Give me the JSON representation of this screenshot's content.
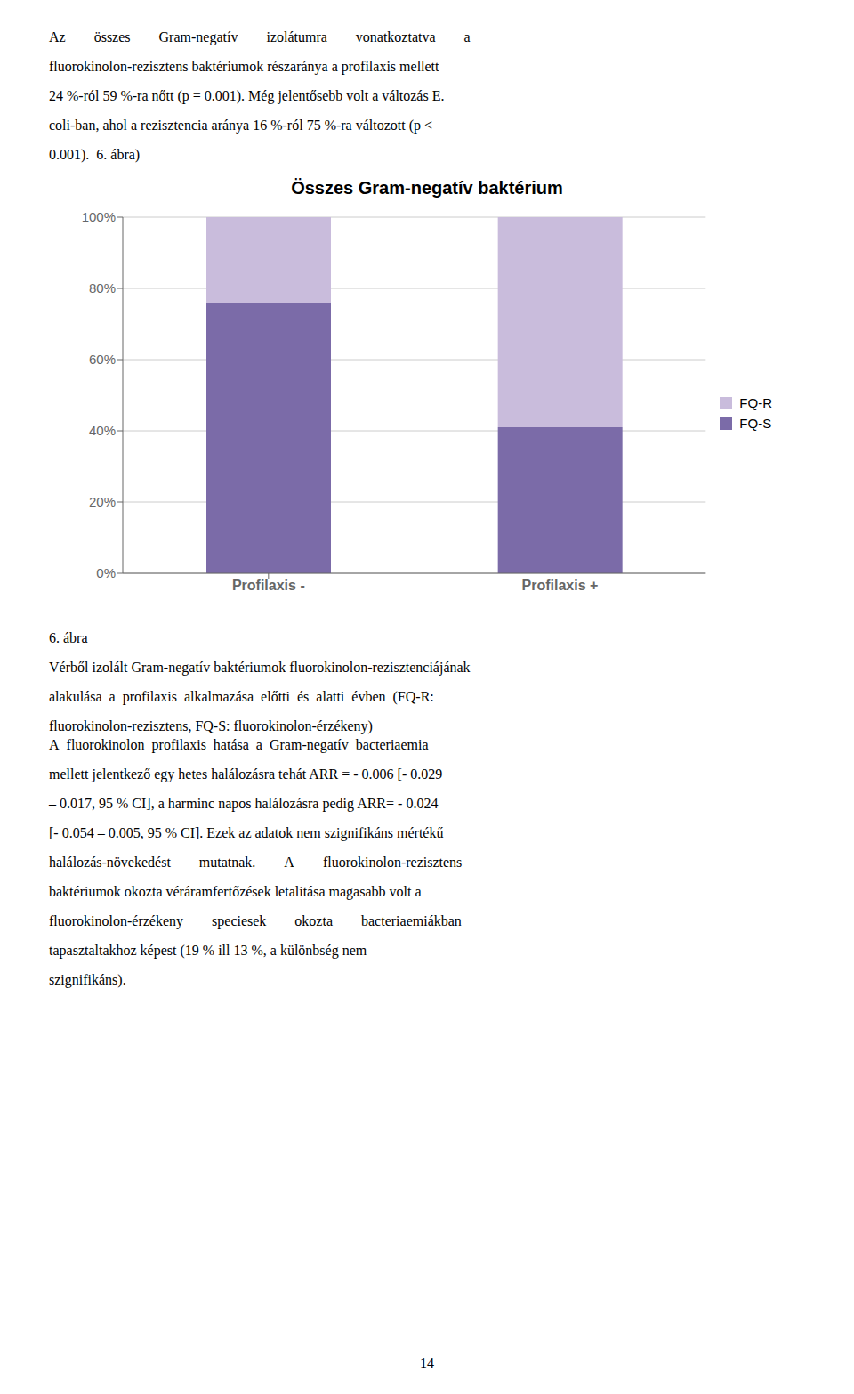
{
  "chart_data": {
    "type": "bar",
    "title": "Összes Gram-negatív baktérium",
    "categories": [
      "Profilaxis -",
      "Profilaxis +"
    ],
    "series": [
      {
        "name": "FQ-S",
        "color": "#7B6BA8",
        "values": [
          0.76,
          0.41
        ]
      },
      {
        "name": "FQ-R",
        "color": "#C9BCDC",
        "values": [
          0.24,
          0.59
        ]
      }
    ],
    "stacked": true,
    "ylim": [
      0,
      1.0
    ],
    "yticks": [
      {
        "value": 0.0,
        "label": "0%"
      },
      {
        "value": 0.2,
        "label": "20%"
      },
      {
        "value": 0.4,
        "label": "40%"
      },
      {
        "value": 0.6,
        "label": "60%"
      },
      {
        "value": 0.8,
        "label": "80%"
      },
      {
        "value": 1.0,
        "label": "100%"
      }
    ],
    "grid": true,
    "legend": "right",
    "annotations": [
      [
        "Az  összes  Gram-negatív  izolátumra  vonatkoztatva  a",
        "fluorokinolon-rezisztens baktériumok részaránya a profilaxis mellett",
        "24 %-ról 59 %-ra nőtt (p = 0.001). Még jelentősebb volt a változás E.",
        "coli-ban, ahol a rezisztencia aránya 16 %-ról 75 %-ra változott (p <",
        "0.001).  6. ábra)"
      ],
      [
        "6. ábra",
        "Vérből izolált Gram-negatív baktériumok fluorokinolon-rezisztenciájának",
        "alakulása a profilaxis alkalmazása előtti és alatti évben (FQ-R:",
        "fluorokinolon-rezisztens, FQ-S: fluorokinolon-érzékeny)"
      ],
      [
        "A fluorokinolon profilaxis hatása a Gram-negatív bacteriaemia",
        "mellett jelentkező egy hetes halálozásra tehát ARR = - 0.006 [- 0.029",
        "– 0.017, 95 % CI], a harminc napos halálozásra pedig ARR= - 0.024",
        "[- 0.054 – 0.005, 95 % CI]. Ezek az adatok nem szignifikáns mértékű",
        "halálozás-növekedést  mutatnak.  A  fluorokinolon-rezisztens",
        "baktériumok okozta véráramfertőzések letalitása magasabb volt a",
        "fluorokinolon-érzékeny  speciesek  okozta  bacteriaemiákban",
        "tapasztaltakhoz képest (19 % ill 13 %, a különbség nem",
        "szignifikáns)."
      ],
      [
        "14"
      ]
    ]
  }
}
